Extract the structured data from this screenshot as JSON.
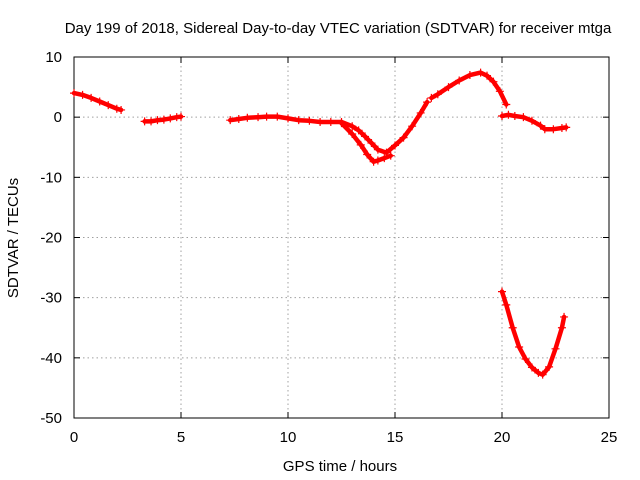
{
  "chart_data": {
    "type": "scatter",
    "title": "Day 199 of 2018, Sidereal Day-to-day VTEC variation (SDTVAR) for receiver mtga",
    "xlabel": "GPS time / hours",
    "ylabel": "SDTVAR / TECUs",
    "xlim": [
      0,
      25
    ],
    "ylim": [
      -50,
      10
    ],
    "xticks": [
      0,
      5,
      10,
      15,
      20,
      25
    ],
    "yticks": [
      10,
      0,
      -10,
      -20,
      -30,
      -40,
      -50
    ],
    "grid": true,
    "marker": "+",
    "color": "#ff0000",
    "series": [
      {
        "name": "segment-1",
        "x": [
          0.0,
          0.4,
          0.8,
          1.2,
          1.6,
          2.0,
          2.2
        ],
        "y": [
          4.0,
          3.7,
          3.2,
          2.6,
          2.0,
          1.4,
          1.2
        ]
      },
      {
        "name": "segment-2",
        "x": [
          3.3,
          3.6,
          3.9,
          4.2,
          4.5,
          4.8,
          5.0
        ],
        "y": [
          -0.7,
          -0.7,
          -0.5,
          -0.4,
          -0.2,
          0.0,
          0.1
        ]
      },
      {
        "name": "segment-3",
        "x": [
          7.3,
          7.7,
          8.1,
          8.6,
          9.0,
          9.5,
          10.0,
          10.5,
          11.0,
          11.5,
          12.0,
          12.5,
          13.0,
          13.3,
          13.6,
          13.9,
          14.2,
          14.6,
          15.0,
          15.4,
          15.8,
          16.2,
          16.5
        ],
        "y": [
          -0.5,
          -0.3,
          -0.1,
          0.0,
          0.1,
          0.1,
          -0.2,
          -0.5,
          -0.6,
          -0.8,
          -0.8,
          -0.8,
          -1.5,
          -2.2,
          -3.2,
          -4.3,
          -5.4,
          -5.9,
          -4.7,
          -3.4,
          -1.5,
          0.7,
          2.5
        ]
      },
      {
        "name": "segment-3-spread",
        "x": [
          12.5,
          13.0,
          13.4,
          13.7,
          14.0,
          14.2,
          14.5,
          14.8
        ],
        "y": [
          -1.0,
          -2.8,
          -4.6,
          -6.2,
          -7.4,
          -7.2,
          -6.8,
          -6.4
        ]
      },
      {
        "name": "segment-4",
        "x": [
          16.7,
          17.0,
          17.5,
          18.0,
          18.5,
          19.0,
          19.3,
          19.6,
          19.9,
          20.2
        ],
        "y": [
          3.2,
          3.8,
          5.0,
          6.1,
          7.0,
          7.4,
          6.9,
          5.9,
          4.3,
          2.1
        ]
      },
      {
        "name": "segment-5",
        "x": [
          20.0,
          20.3,
          20.6,
          21.0,
          21.4,
          21.8,
          22.0,
          22.4,
          22.8,
          23.0
        ],
        "y": [
          0.2,
          0.4,
          0.2,
          0.0,
          -0.6,
          -1.4,
          -2.0,
          -2.0,
          -1.8,
          -1.7
        ]
      },
      {
        "name": "segment-6",
        "x": [
          20.0,
          20.2,
          20.5,
          20.8,
          21.1,
          21.4,
          21.7,
          21.9,
          22.2,
          22.5,
          22.8,
          22.9
        ],
        "y": [
          -29.0,
          -31.2,
          -35.0,
          -38.2,
          -40.2,
          -41.6,
          -42.5,
          -42.8,
          -41.5,
          -38.5,
          -35.0,
          -33.2
        ]
      }
    ]
  }
}
